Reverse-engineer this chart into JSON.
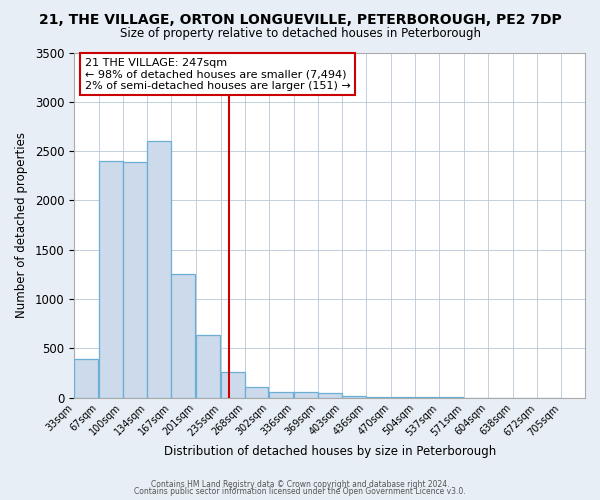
{
  "title": "21, THE VILLAGE, ORTON LONGUEVILLE, PETERBOROUGH, PE2 7DP",
  "subtitle": "Size of property relative to detached houses in Peterborough",
  "xlabel": "Distribution of detached houses by size in Peterborough",
  "ylabel": "Number of detached properties",
  "bar_left_edges": [
    33,
    67,
    100,
    134,
    167,
    201,
    235,
    268,
    302,
    336,
    369,
    403,
    436,
    470,
    504,
    537,
    571,
    604,
    638,
    672
  ],
  "bar_heights": [
    390,
    2400,
    2390,
    2600,
    1250,
    635,
    265,
    105,
    60,
    55,
    45,
    18,
    10,
    5,
    4,
    3,
    2,
    1,
    1,
    1
  ],
  "bin_width": 33,
  "bar_color": "#cddaeb",
  "bar_edge_color": "#6baed6",
  "tick_labels": [
    "33sqm",
    "67sqm",
    "100sqm",
    "134sqm",
    "167sqm",
    "201sqm",
    "235sqm",
    "268sqm",
    "302sqm",
    "336sqm",
    "369sqm",
    "403sqm",
    "436sqm",
    "470sqm",
    "504sqm",
    "537sqm",
    "571sqm",
    "604sqm",
    "638sqm",
    "672sqm",
    "705sqm"
  ],
  "vline_x": 247,
  "vline_color": "#cc0000",
  "ylim": [
    0,
    3500
  ],
  "yticks": [
    0,
    500,
    1000,
    1500,
    2000,
    2500,
    3000,
    3500
  ],
  "xlim_left": 33,
  "xlim_right": 738,
  "annotation_title": "21 THE VILLAGE: 247sqm",
  "annotation_line1": "← 98% of detached houses are smaller (7,494)",
  "annotation_line2": "2% of semi-detached houses are larger (151) →",
  "annotation_box_facecolor": "#ffffff",
  "annotation_box_edgecolor": "#cc0000",
  "footnote1": "Contains HM Land Registry data © Crown copyright and database right 2024.",
  "footnote2": "Contains public sector information licensed under the Open Government Licence v3.0.",
  "fig_facecolor": "#e8eef5",
  "plot_facecolor": "#ffffff",
  "grid_color": "#b8c8d8",
  "spine_color": "#aaaaaa"
}
